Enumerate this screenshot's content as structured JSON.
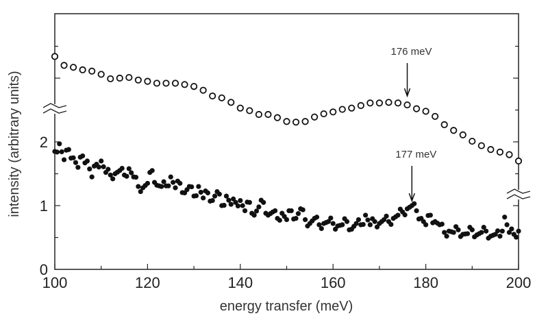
{
  "chart_data": {
    "type": "scatter",
    "xlabel": "energy transfer (meV)",
    "ylabel": "intensity (arbitrary units)",
    "xlim": [
      100,
      200
    ],
    "ylim": [
      0,
      4
    ],
    "x_ticks": [
      "100",
      "120",
      "140",
      "160",
      "180",
      "200"
    ],
    "y_ticks": [
      "0",
      "1",
      "2"
    ],
    "axis_break": true,
    "grid": false,
    "annotations": [
      {
        "text": "176 meV",
        "x": 176,
        "series": "open"
      },
      {
        "text": "177 meV",
        "x": 177,
        "series": "filled"
      }
    ],
    "series": [
      {
        "marker": "open-circle",
        "x": [
          100,
          102,
          104,
          106,
          108,
          110,
          112,
          114,
          116,
          118,
          120,
          122,
          124,
          126,
          128,
          130,
          132,
          134,
          136,
          138,
          140,
          142,
          144,
          146,
          148,
          150,
          152,
          154,
          156,
          158,
          160,
          162,
          164,
          166,
          168,
          170,
          172,
          174,
          176,
          178,
          180,
          182,
          184,
          186,
          188,
          190,
          192,
          194,
          196,
          198,
          200
        ],
        "y": [
          3.34,
          3.2,
          3.17,
          3.13,
          3.11,
          3.06,
          2.99,
          3.0,
          3.01,
          2.97,
          2.95,
          2.92,
          2.92,
          2.92,
          2.9,
          2.87,
          2.81,
          2.72,
          2.69,
          2.62,
          2.53,
          2.49,
          2.43,
          2.43,
          2.38,
          2.32,
          2.31,
          2.32,
          2.39,
          2.44,
          2.47,
          2.51,
          2.53,
          2.57,
          2.61,
          2.61,
          2.62,
          2.61,
          2.58,
          2.52,
          2.48,
          2.4,
          2.27,
          2.18,
          2.11,
          2.01,
          1.94,
          1.88,
          1.84,
          1.8,
          1.7
        ]
      },
      {
        "marker": "filled-circle",
        "x": [
          100,
          101,
          102,
          103,
          104,
          105,
          106,
          107,
          108,
          109,
          110,
          111,
          112,
          113,
          114,
          115,
          116,
          117,
          118,
          119,
          120,
          121,
          122,
          123,
          124,
          125,
          126,
          127,
          128,
          129,
          130,
          131,
          132,
          133,
          134,
          135,
          136,
          137,
          138,
          139,
          140,
          141,
          142,
          143,
          144,
          145,
          146,
          147,
          148,
          149,
          150,
          151,
          152,
          153,
          154,
          155,
          156,
          157,
          158,
          159,
          160,
          161,
          162,
          163,
          164,
          165,
          166,
          167,
          168,
          169,
          170,
          171,
          172,
          173,
          174,
          175,
          176,
          177,
          178,
          179,
          180,
          181,
          182,
          183,
          184,
          185,
          186,
          187,
          188,
          189,
          190,
          191,
          192,
          193,
          194,
          195,
          196,
          197,
          198,
          199,
          200
        ],
        "y": [
          1.85,
          1.97,
          1.72,
          1.88,
          1.75,
          1.6,
          1.78,
          1.7,
          1.45,
          1.65,
          1.7,
          1.52,
          1.48,
          1.5,
          1.55,
          1.48,
          1.58,
          1.45,
          1.3,
          1.28,
          1.35,
          1.55,
          1.32,
          1.3,
          1.31,
          1.45,
          1.28,
          1.35,
          1.2,
          1.3,
          1.15,
          1.3,
          1.12,
          1.2,
          1.08,
          1.22,
          1.0,
          1.15,
          1.02,
          1.05,
          1.08,
          0.92,
          1.05,
          0.85,
          0.98,
          1.05,
          0.85,
          0.9,
          0.8,
          0.88,
          0.78,
          0.92,
          0.8,
          0.95,
          0.78,
          0.72,
          0.8,
          0.7,
          0.72,
          0.75,
          0.72,
          0.68,
          0.7,
          0.75,
          0.63,
          0.72,
          0.7,
          0.85,
          0.7,
          0.75,
          0.72,
          0.78,
          0.75,
          0.8,
          0.85,
          0.9,
          0.95,
          1.0,
          0.92,
          0.8,
          0.7,
          0.85,
          0.75,
          0.7,
          0.58,
          0.6,
          0.58,
          0.62,
          0.55,
          0.56,
          0.62,
          0.54,
          0.58,
          0.6,
          0.52,
          0.55,
          0.52,
          0.82,
          0.58,
          0.55,
          0.6
        ]
      }
    ]
  }
}
